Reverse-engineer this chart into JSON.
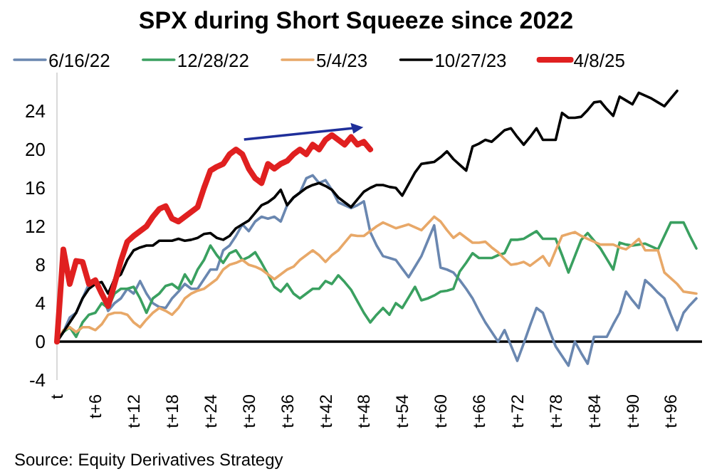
{
  "chart_data": {
    "type": "line",
    "title": "SPX during Short Squeeze since 2022",
    "categories": [
      "t",
      null,
      null,
      null,
      null,
      null,
      "t+6",
      null,
      null,
      null,
      null,
      null,
      "t+12",
      null,
      null,
      null,
      null,
      null,
      "t+18",
      null,
      null,
      null,
      null,
      null,
      "t+24",
      null,
      null,
      null,
      null,
      null,
      "t+30",
      null,
      null,
      null,
      null,
      null,
      "t+36",
      null,
      null,
      null,
      null,
      null,
      "t+42",
      null,
      null,
      null,
      null,
      null,
      "t+48",
      null,
      null,
      null,
      null,
      null,
      "t+54",
      null,
      null,
      null,
      null,
      null,
      "t+60",
      null,
      null,
      null,
      null,
      null,
      "t+66",
      null,
      null,
      null,
      null,
      null,
      "t+72",
      null,
      null,
      null,
      null,
      null,
      "t+78",
      null,
      null,
      null,
      null,
      null,
      "t+84",
      null,
      null,
      null,
      null,
      null,
      "t+90",
      null,
      null,
      null,
      null,
      null,
      "t+96",
      null,
      null,
      null,
      null
    ],
    "ylim": [
      -4,
      28
    ],
    "yticks": [
      -4,
      0,
      4,
      8,
      12,
      16,
      20,
      24
    ],
    "grid": false,
    "legend": "top",
    "marker": "none",
    "line_style": "solid",
    "ref_lines": [
      {
        "axis": "y",
        "value": 0,
        "color": "#000000"
      }
    ],
    "annotations": [
      "Source: Equity Derivatives Strategy"
    ],
    "series": [
      {
        "name": "6/16/22",
        "color": "#6a87b0",
        "values": [
          0,
          1,
          2.5,
          3,
          4.5,
          6,
          6,
          5,
          3.2,
          4,
          4.5,
          5.5,
          5,
          6.3,
          5,
          4,
          3.6,
          3.5,
          4.5,
          5.2,
          6,
          5.5,
          5.5,
          6.5,
          7.5,
          7.5,
          9.5,
          10,
          11,
          12.2,
          11.5,
          12.5,
          13,
          12.8,
          13,
          12.5,
          14.2,
          15,
          15.5,
          17,
          17.3,
          16.5,
          16.8,
          15.8,
          14.5,
          14.2,
          13.9,
          14.2,
          14.6,
          11.4,
          10,
          8.9,
          8.7,
          8.5,
          7.6,
          6.7,
          7.8,
          8.9,
          10.5,
          12.1,
          7.7,
          7.5,
          7.2,
          6.4,
          5.5,
          4.5,
          3.2,
          2,
          1,
          0,
          1.2,
          -0.4,
          -2,
          -0.2,
          1.7,
          3.5,
          3,
          1.2,
          -0.5,
          -1.5,
          -2.5,
          0,
          -1.2,
          -2.3,
          0.5,
          0.5,
          0.5,
          1.8,
          3,
          5.2,
          4.3,
          3.5,
          6.4,
          5.8,
          5.1,
          4.5,
          2.8,
          1.2,
          3,
          3.8,
          4.5
        ]
      },
      {
        "name": "12/28/22",
        "color": "#3aa060",
        "values": [
          0,
          1,
          1.5,
          0.5,
          2,
          2.8,
          3,
          4,
          3.5,
          5,
          5.5,
          5.5,
          5.7,
          4.5,
          3,
          4.5,
          5,
          5.8,
          6,
          5.5,
          7,
          6,
          7.5,
          8.5,
          10,
          9,
          8.2,
          9.2,
          9.5,
          8.5,
          8.8,
          9.3,
          8.2,
          7,
          5.7,
          5.2,
          6,
          5,
          4.5,
          5,
          5.5,
          5.5,
          6.3,
          6,
          6.9,
          6.2,
          5.4,
          4.2,
          3,
          2,
          2.8,
          3.5,
          2.8,
          4,
          3.5,
          4.6,
          5.7,
          4.3,
          4.5,
          4.8,
          5.2,
          5.3,
          5.5,
          7.3,
          8.2,
          9.2,
          8.7,
          8.7,
          8.7,
          9,
          9.2,
          10.6,
          10.6,
          10.7,
          11.1,
          11.5,
          10.7,
          10.7,
          10.7,
          9,
          7.2,
          8.9,
          10.6,
          11.3,
          10.5,
          9.7,
          8.6,
          7.5,
          10.3,
          10.1,
          10,
          10.1,
          10.2,
          9.9,
          9.6,
          11,
          12.4,
          12.4,
          12.4,
          11,
          9.7
        ]
      },
      {
        "name": "5/4/23",
        "color": "#e8a868",
        "values": [
          0,
          1.2,
          1.5,
          1,
          1.5,
          1.5,
          1.2,
          1.8,
          2.8,
          3,
          3,
          2.8,
          2,
          1.5,
          2.3,
          3,
          3.5,
          3.2,
          2.8,
          3.5,
          4.5,
          5,
          5.3,
          5.5,
          6,
          6.5,
          7.5,
          8,
          8.2,
          8.5,
          8,
          7.8,
          7.5,
          7,
          6.5,
          7,
          7.5,
          7.8,
          8.5,
          9,
          9.5,
          9,
          8.3,
          9,
          9.5,
          10.3,
          11.1,
          11,
          11,
          11.5,
          12,
          12.4,
          12.1,
          11.8,
          12,
          12.2,
          11.9,
          11.6,
          12.3,
          13,
          12.5,
          11.6,
          10.8,
          11.3,
          10.8,
          10.3,
          10.3,
          10.4,
          9.8,
          9.3,
          8.6,
          8,
          8.1,
          8.3,
          7.9,
          8.4,
          8.9,
          7.9,
          9.5,
          11,
          11.2,
          11.4,
          11,
          10.7,
          10.4,
          10.1,
          10.1,
          10.1,
          9.8,
          9.6,
          10.1,
          10.7,
          9.5,
          9.5,
          9.5,
          7.2,
          6.6,
          6,
          5.2,
          5.1,
          5
        ]
      },
      {
        "name": "10/27/23",
        "color": "#000000",
        "values": [
          0,
          1,
          2,
          3,
          4.5,
          5.5,
          6,
          6.2,
          5,
          6.5,
          7,
          8.5,
          9.5,
          9.8,
          10,
          10,
          10.5,
          10.5,
          10.5,
          10.7,
          10.5,
          10.6,
          10.8,
          11.2,
          11.3,
          10.8,
          10.6,
          11,
          11.8,
          12.2,
          12.6,
          13.4,
          14.2,
          14.5,
          15,
          15.8,
          14.2,
          15,
          15.5,
          16,
          16.3,
          16.5,
          16.2,
          15.8,
          15,
          14.5,
          14,
          14.8,
          15.6,
          16,
          16.3,
          16.3,
          16.1,
          16,
          15.2,
          16.4,
          17.6,
          18.5,
          18.6,
          18.7,
          19.2,
          19.8,
          19,
          18.4,
          17.8,
          20.3,
          20.6,
          21,
          20.8,
          21.4,
          22,
          22.2,
          21.3,
          20.5,
          21.3,
          22.2,
          21,
          21,
          21,
          23.8,
          23.3,
          23.3,
          23.4,
          24.1,
          24.9,
          25,
          24.2,
          23.5,
          25.5,
          25.1,
          24.7,
          25.9,
          25.6,
          25.3,
          24.9,
          24.5,
          25.3,
          26.1,
          null,
          null,
          null
        ]
      },
      {
        "name": "4/8/25",
        "color": "#e02020",
        "values": [
          0,
          9.6,
          6,
          8.4,
          8.3,
          6,
          6.4,
          5,
          3.7,
          6,
          8.4,
          10.4,
          11,
          11.5,
          12,
          13,
          13.8,
          14.1,
          12.8,
          12.5,
          13,
          13.5,
          14,
          16,
          17.8,
          18.2,
          18.5,
          19.5,
          20,
          19.5,
          18,
          17,
          16.5,
          18.5,
          18,
          18.5,
          18.8,
          19.5,
          20,
          19.5,
          20.5,
          20,
          21,
          21.5,
          21,
          20.5,
          21.3,
          20.5,
          20.8,
          20,
          null,
          null,
          null,
          null,
          null,
          null,
          null,
          null,
          null,
          null,
          null,
          null,
          null,
          null,
          null,
          null,
          null,
          null,
          null,
          null,
          null,
          null,
          null,
          null,
          null,
          null,
          null,
          null,
          null,
          null,
          null,
          null,
          null,
          null,
          null,
          null,
          null,
          null,
          null,
          null,
          null,
          null,
          null,
          null,
          null,
          null,
          null,
          null,
          null,
          null,
          null
        ]
      }
    ]
  }
}
